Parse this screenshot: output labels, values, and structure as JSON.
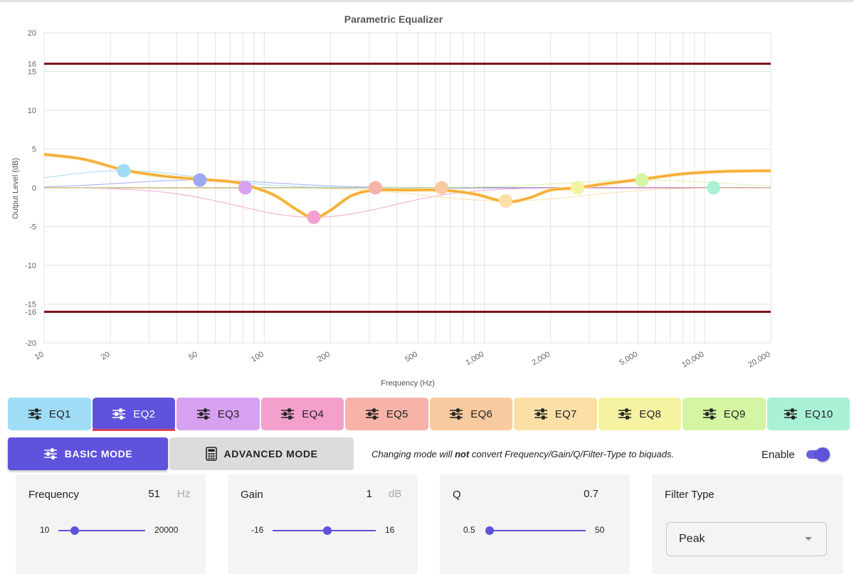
{
  "chart_data": {
    "type": "line",
    "title": "Parametric Equalizer",
    "xlabel": "Frequency (Hz)",
    "ylabel": "Output Level (dB)",
    "x_scale": "log",
    "xlim": [
      10,
      20000
    ],
    "ylim": [
      -20,
      20
    ],
    "y_ticks": [
      -20,
      -15,
      -10,
      -5,
      0,
      5,
      10,
      15,
      20
    ],
    "x_ticks": [
      {
        "v": 10,
        "label": "10"
      },
      {
        "v": 20,
        "label": "20"
      },
      {
        "v": 50,
        "label": "50"
      },
      {
        "v": 100,
        "label": "100"
      },
      {
        "v": 200,
        "label": "200"
      },
      {
        "v": 500,
        "label": "500"
      },
      {
        "v": 1000,
        "label": "1,000"
      },
      {
        "v": 2000,
        "label": "2,000"
      },
      {
        "v": 5000,
        "label": "5,000"
      },
      {
        "v": 10000,
        "label": "10,000"
      },
      {
        "v": 20000,
        "label": "20,000"
      }
    ],
    "limit_lines": [
      {
        "v": 16,
        "label": "16"
      },
      {
        "v": -16,
        "label": "-16"
      }
    ],
    "grid": true,
    "response_curve": {
      "color": "#f5a623",
      "x": [
        10,
        15,
        23,
        35,
        51,
        70,
        82,
        110,
        140,
        168,
        200,
        250,
        320,
        450,
        640,
        900,
        1250,
        1600,
        2000,
        2650,
        3500,
        5200,
        8000,
        12000,
        20000
      ],
      "y": [
        4.3,
        3.7,
        2.3,
        1.5,
        1.1,
        0.8,
        0.4,
        -0.9,
        -2.8,
        -3.9,
        -2.9,
        -1.0,
        -0.3,
        -0.3,
        -0.3,
        -0.8,
        -1.8,
        -1.3,
        -0.3,
        0.0,
        0.5,
        1.1,
        1.8,
        2.1,
        2.2
      ]
    },
    "series": [
      {
        "name": "EQ1",
        "freq": 23,
        "gain": 2.2,
        "color": "#9fdcf6"
      },
      {
        "name": "EQ2",
        "freq": 51,
        "gain": 1.0,
        "color": "#9ea8f2"
      },
      {
        "name": "EQ3",
        "freq": 82,
        "gain": 0.0,
        "color": "#d8a0f0"
      },
      {
        "name": "EQ4",
        "freq": 168,
        "gain": -3.8,
        "color": "#f4a0cd"
      },
      {
        "name": "EQ5",
        "freq": 320,
        "gain": 0.0,
        "color": "#f7b3a8"
      },
      {
        "name": "EQ6",
        "freq": 640,
        "gain": 0.0,
        "color": "#f8caa0"
      },
      {
        "name": "EQ7",
        "freq": 1250,
        "gain": -1.7,
        "color": "#fbe0a6"
      },
      {
        "name": "EQ8",
        "freq": 2650,
        "gain": 0.0,
        "color": "#f5f3a2"
      },
      {
        "name": "EQ9",
        "freq": 5200,
        "gain": 1.0,
        "color": "#d4f5a2"
      },
      {
        "name": "EQ10",
        "freq": 11000,
        "gain": 0.0,
        "color": "#a9f1d5"
      }
    ]
  },
  "tabs": [
    {
      "label": "EQ1",
      "color": "#9fdcf6"
    },
    {
      "label": "EQ2",
      "color": "#5f52dc",
      "active": true
    },
    {
      "label": "EQ3",
      "color": "#d8a0f0"
    },
    {
      "label": "EQ4",
      "color": "#f4a0cd"
    },
    {
      "label": "EQ5",
      "color": "#f7b3a8"
    },
    {
      "label": "EQ6",
      "color": "#f8caa0"
    },
    {
      "label": "EQ7",
      "color": "#fbe0a6"
    },
    {
      "label": "EQ8",
      "color": "#f5f3a2"
    },
    {
      "label": "EQ9",
      "color": "#d4f5a2"
    },
    {
      "label": "EQ10",
      "color": "#a9f1d5"
    }
  ],
  "mode": {
    "basic_label": "BASIC MODE",
    "advanced_label": "ADVANCED MODE",
    "note_before": "Changing mode will ",
    "note_bold": "not",
    "note_after": " convert Frequency/Gain/Q/Filter-Type to biquads."
  },
  "enable": {
    "label": "Enable",
    "on": true
  },
  "controls": {
    "frequency": {
      "label": "Frequency",
      "value": "51",
      "unit": "Hz",
      "min": "10",
      "max": "20000",
      "level_fraction": 0.19
    },
    "gain": {
      "label": "Gain",
      "value": "1",
      "unit": "dB",
      "min": "-16",
      "max": "16",
      "level_fraction": 0.53
    },
    "q": {
      "label": "Q",
      "value": "0.7",
      "min": "0.5",
      "max": "50",
      "level_fraction": 0.02
    },
    "filter_type": {
      "label": "Filter Type",
      "value": "Peak"
    }
  },
  "colors": {
    "accent": "#5f52dc",
    "limit_line": "#7b0f14",
    "tab_underline": "#d9455b"
  }
}
